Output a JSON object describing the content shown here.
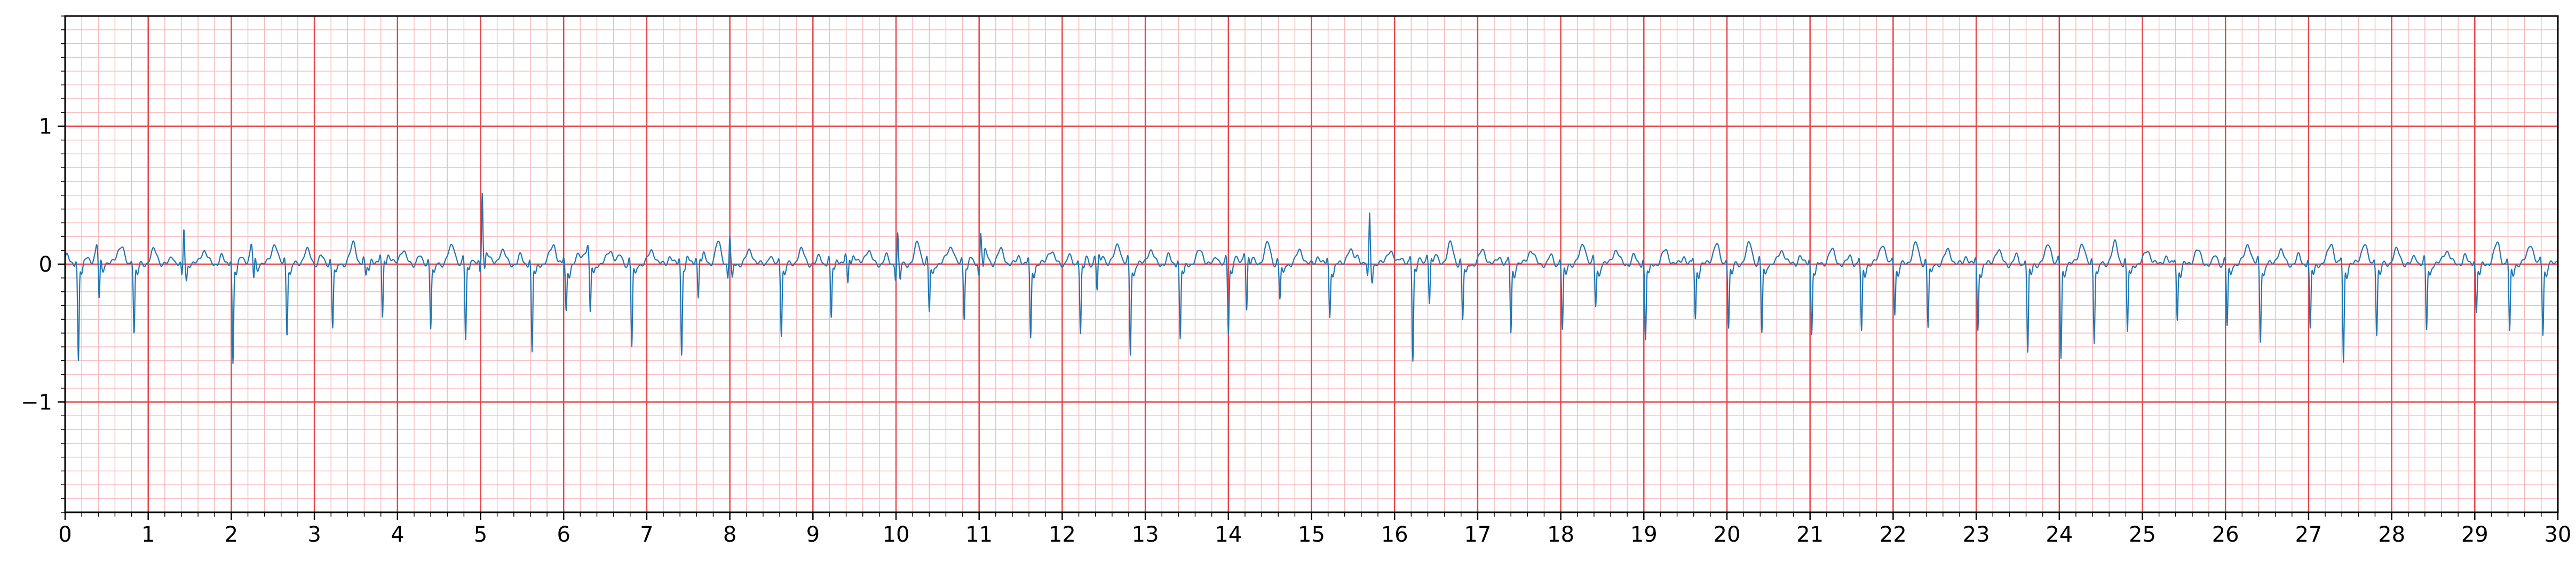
{
  "chart_data": {
    "type": "line",
    "title": "",
    "xlabel": "",
    "ylabel": "",
    "xlim": [
      0,
      30
    ],
    "ylim": [
      -1.8,
      1.8
    ],
    "x_ticks": [
      0,
      1,
      2,
      3,
      4,
      5,
      6,
      7,
      8,
      9,
      10,
      11,
      12,
      13,
      14,
      15,
      16,
      17,
      18,
      19,
      20,
      21,
      22,
      23,
      24,
      25,
      26,
      27,
      28,
      29,
      30
    ],
    "x_tick_labels": [
      "0",
      "1",
      "2",
      "3",
      "4",
      "5",
      "6",
      "7",
      "8",
      "9",
      "10",
      "11",
      "12",
      "13",
      "14",
      "15",
      "16",
      "17",
      "18",
      "19",
      "20",
      "21",
      "22",
      "23",
      "24",
      "25",
      "26",
      "27",
      "28",
      "29",
      "30"
    ],
    "y_ticks": [
      -1,
      0,
      1
    ],
    "y_tick_labels": [
      "−1",
      "0",
      "1"
    ],
    "grid": {
      "major": true,
      "minor": true,
      "major_color": "#e8454a",
      "minor_color": "#f7b9bc",
      "major_step_x": 1,
      "minor_step_x": 0.2,
      "major_step_y": 1,
      "minor_step_y": 0.1
    },
    "series": [
      {
        "color": "#1f77b4",
        "beat_times": [
          0.16,
          0.41,
          0.83,
          1.43,
          2.02,
          2.27,
          2.67,
          3.22,
          3.62,
          3.82,
          4.4,
          4.82,
          5.02,
          5.62,
          6.03,
          6.32,
          6.82,
          7.42,
          7.62,
          8.0,
          8.62,
          9.22,
          9.42,
          10.02,
          10.4,
          10.82,
          11.02,
          11.62,
          12.22,
          12.42,
          12.82,
          13.42,
          14.0,
          14.22,
          14.62,
          15.22,
          15.7,
          16.22,
          16.42,
          16.82,
          17.4,
          18.02,
          18.42,
          19.02,
          19.62,
          20.02,
          20.42,
          21.02,
          21.62,
          22.02,
          22.42,
          23.02,
          23.62,
          24.02,
          24.42,
          24.82,
          25.42,
          26.02,
          26.42,
          27.02,
          27.42,
          27.82,
          28.42,
          29.02,
          29.42,
          29.82
        ],
        "beat_amplitudes": [
          -0.7,
          -0.35,
          -0.5,
          0.26,
          -0.72,
          -0.2,
          -0.5,
          -0.45,
          -0.1,
          -0.45,
          -0.45,
          -0.55,
          0.47,
          -0.65,
          -0.35,
          -0.4,
          -0.6,
          -0.65,
          -0.3,
          0.2,
          -0.5,
          -0.4,
          -0.2,
          0.22,
          -0.35,
          -0.38,
          0.18,
          -0.55,
          -0.5,
          -0.25,
          -0.65,
          -0.55,
          -0.5,
          -0.4,
          -0.25,
          -0.38,
          0.36,
          -0.7,
          -0.32,
          -0.4,
          -0.5,
          -0.48,
          -0.3,
          -0.55,
          -0.4,
          -0.45,
          -0.5,
          -0.5,
          -0.5,
          -0.35,
          -0.45,
          -0.48,
          -0.65,
          -0.68,
          -0.55,
          -0.5,
          -0.4,
          -0.45,
          -0.55,
          -0.48,
          -0.72,
          -0.5,
          -0.48,
          -0.35,
          -0.5,
          -0.5
        ]
      }
    ]
  }
}
